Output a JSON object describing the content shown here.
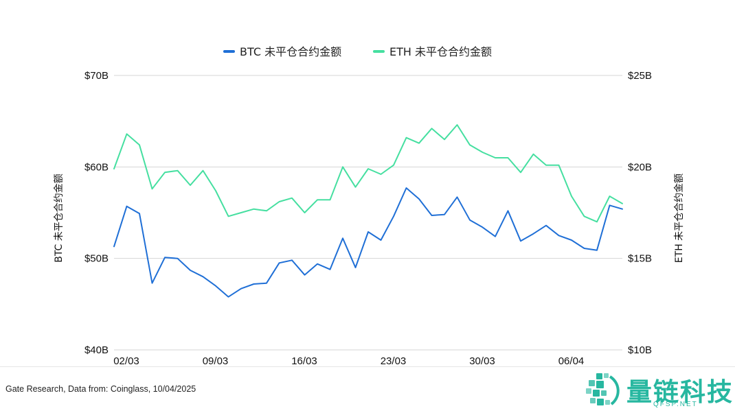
{
  "chart_data": {
    "type": "line",
    "legend_position": "top-center",
    "grid": true,
    "x_ticks": [
      "02/03",
      "09/03",
      "16/03",
      "23/03",
      "30/03",
      "06/04"
    ],
    "left_axis": {
      "label": "BTC 未平仓合约金额",
      "range": [
        40,
        70
      ],
      "ticks": [
        70,
        60,
        50,
        40
      ],
      "tick_labels": [
        "$70B",
        "$60B",
        "$50B",
        "$40B"
      ]
    },
    "right_axis": {
      "label": "ETH 未平仓合约金额",
      "range": [
        10,
        25
      ],
      "ticks": [
        25,
        20,
        15,
        10
      ],
      "tick_labels": [
        "$25B",
        "$20B",
        "$15B",
        "$10B"
      ]
    },
    "series": [
      {
        "name": "BTC 未平仓合约金额",
        "axis": "left",
        "color": "#1f6fd6",
        "values": [
          51.3,
          55.7,
          54.9,
          47.3,
          50.1,
          50.0,
          48.7,
          48.0,
          47.0,
          45.8,
          46.7,
          47.2,
          47.3,
          49.5,
          49.8,
          48.2,
          49.4,
          48.8,
          52.2,
          49.0,
          52.9,
          52.0,
          54.6,
          57.7,
          56.5,
          54.7,
          54.8,
          56.7,
          54.2,
          53.4,
          52.4,
          55.2,
          51.9,
          52.7,
          53.6,
          52.5,
          52.0,
          51.1,
          50.9,
          55.8,
          55.4
        ]
      },
      {
        "name": "ETH 未平仓合约金额",
        "axis": "right",
        "color": "#45dfa0",
        "values": [
          19.9,
          21.8,
          21.2,
          18.8,
          19.7,
          19.8,
          19.0,
          19.8,
          18.7,
          17.3,
          17.5,
          17.7,
          17.6,
          18.1,
          18.3,
          17.5,
          18.2,
          18.2,
          20.0,
          18.9,
          19.9,
          19.6,
          20.1,
          21.6,
          21.3,
          22.1,
          21.5,
          22.3,
          21.2,
          20.8,
          20.5,
          20.5,
          19.7,
          20.7,
          20.1,
          20.1,
          18.4,
          17.3,
          17.0,
          18.4,
          18.0
        ]
      }
    ]
  },
  "footer": {
    "source": "Gate Research, Data from: Coinglass, 10/04/2025"
  },
  "logo": {
    "text": "量链科技",
    "subtext": "QFSP.NET"
  }
}
